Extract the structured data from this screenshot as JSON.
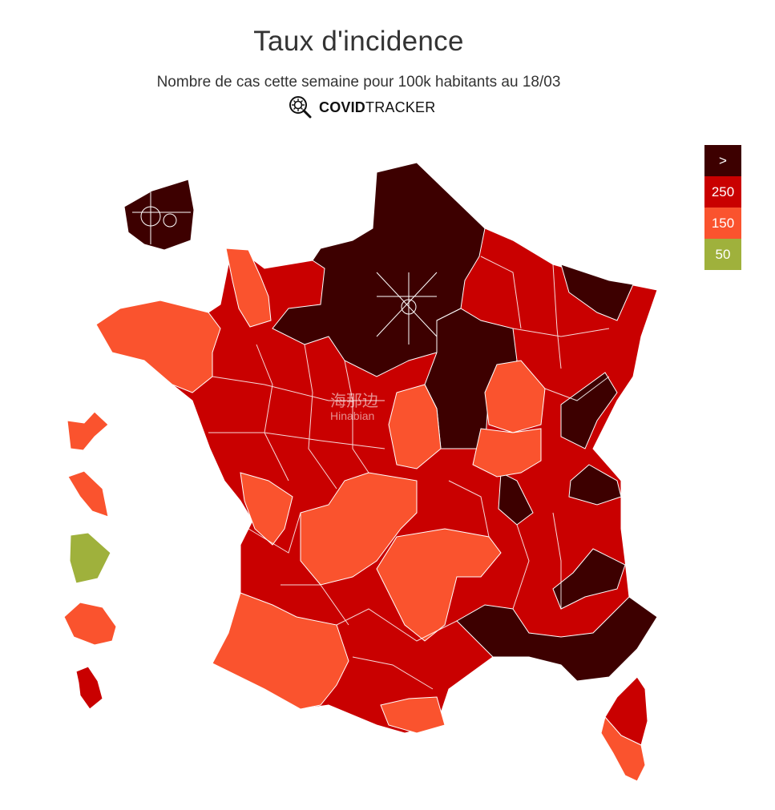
{
  "header": {
    "title": "Taux d'incidence",
    "subtitle": "Nombre de cas cette semaine pour 100k habitants au 18/03",
    "brand_bold": "COVID",
    "brand_regular": "TRACKER",
    "brand_icon": "virus-magnifier-icon"
  },
  "legend": {
    "items": [
      {
        "label": ">",
        "color": "#3d0000"
      },
      {
        "label": "250",
        "color": "#c90000"
      },
      {
        "label": "150",
        "color": "#fa532e"
      },
      {
        "label": "50",
        "color": "#9fb13c"
      }
    ]
  },
  "watermark": {
    "cn": "海那边",
    "en": "Hinabian"
  },
  "colors": {
    "above": "#3d0000",
    "c250": "#c90000",
    "c150": "#fa532e",
    "c50": "#9fb13c",
    "border": "#ffffff"
  }
}
